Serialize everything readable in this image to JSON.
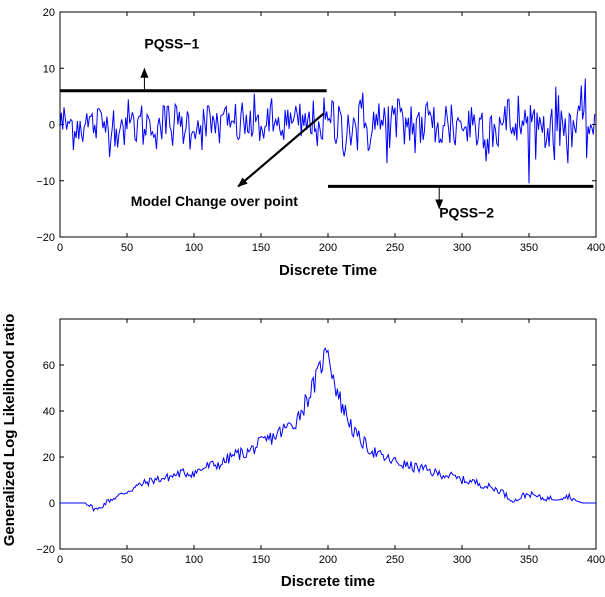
{
  "chart_data": [
    {
      "type": "line",
      "xlabel": "Discrete Time",
      "ylabel": "",
      "xlim": [
        0,
        400
      ],
      "ylim": [
        -20,
        20
      ],
      "xticks": [
        0,
        50,
        100,
        150,
        200,
        250,
        300,
        350,
        400
      ],
      "yticks": [
        -20,
        -10,
        0,
        10,
        20
      ],
      "grid": false,
      "series": [
        {
          "color": "#0000ff",
          "description_points": "stationary noise ~N(0, 2.2) for t=0..199 (PQSS-1), higher variance ~N(0, 3.0) for t=200..399 (PQSS-2)",
          "segments": [
            {
              "x_start": 0,
              "x_end": 199,
              "mean": 0,
              "std": 2.2
            },
            {
              "x_start": 200,
              "x_end": 399,
              "mean": 0,
              "std": 3.0
            }
          ]
        }
      ],
      "reference_lines": [
        {
          "label": "PQSS−1",
          "y": 6,
          "x_start": 0,
          "x_end": 199,
          "color": "#000000"
        },
        {
          "label": "PQSS−2",
          "y": -11,
          "x_start": 200,
          "x_end": 398,
          "color": "#000000"
        }
      ],
      "annotations": [
        {
          "text": "PQSS−1",
          "x": 63,
          "y": 13.5
        },
        {
          "text": "PQSS−2",
          "x": 283,
          "y": -16.5
        },
        {
          "text": "Model Change over point",
          "x": 105,
          "y": -14.5,
          "arrow_from": [
            197,
            2
          ],
          "arrow_to": [
            133,
            -11
          ]
        }
      ]
    },
    {
      "type": "line",
      "xlabel": "Discrete time",
      "ylabel": "Generalized Log Likelihood ratio",
      "xlim": [
        0,
        400
      ],
      "ylim": [
        -20,
        80
      ],
      "xticks": [
        0,
        50,
        100,
        150,
        200,
        250,
        300,
        350,
        400
      ],
      "yticks": [
        -20,
        0,
        20,
        40,
        60
      ],
      "grid": false,
      "series": [
        {
          "color": "#0000ff",
          "x": [
            0,
            20,
            24,
            28,
            32,
            36,
            40,
            50,
            60,
            70,
            80,
            90,
            100,
            110,
            120,
            130,
            140,
            150,
            160,
            170,
            175,
            180,
            185,
            190,
            195,
            198,
            200,
            202,
            205,
            210,
            215,
            220,
            225,
            230,
            240,
            250,
            260,
            270,
            280,
            290,
            300,
            310,
            320,
            330,
            335,
            340,
            345,
            350,
            360,
            370,
            380,
            385,
            390,
            400
          ],
          "y": [
            0,
            0,
            -2,
            -3,
            -1,
            1,
            2,
            5,
            8,
            10,
            11,
            13,
            13,
            16,
            17,
            21,
            22,
            26,
            29,
            33,
            35,
            40,
            46,
            52,
            60,
            65,
            69,
            60,
            52,
            43,
            37,
            30,
            27,
            24,
            20,
            18,
            16,
            15,
            13,
            12,
            10,
            9,
            7,
            5,
            2,
            1,
            3,
            4,
            2,
            2,
            3,
            1,
            0,
            0
          ]
        }
      ]
    }
  ]
}
